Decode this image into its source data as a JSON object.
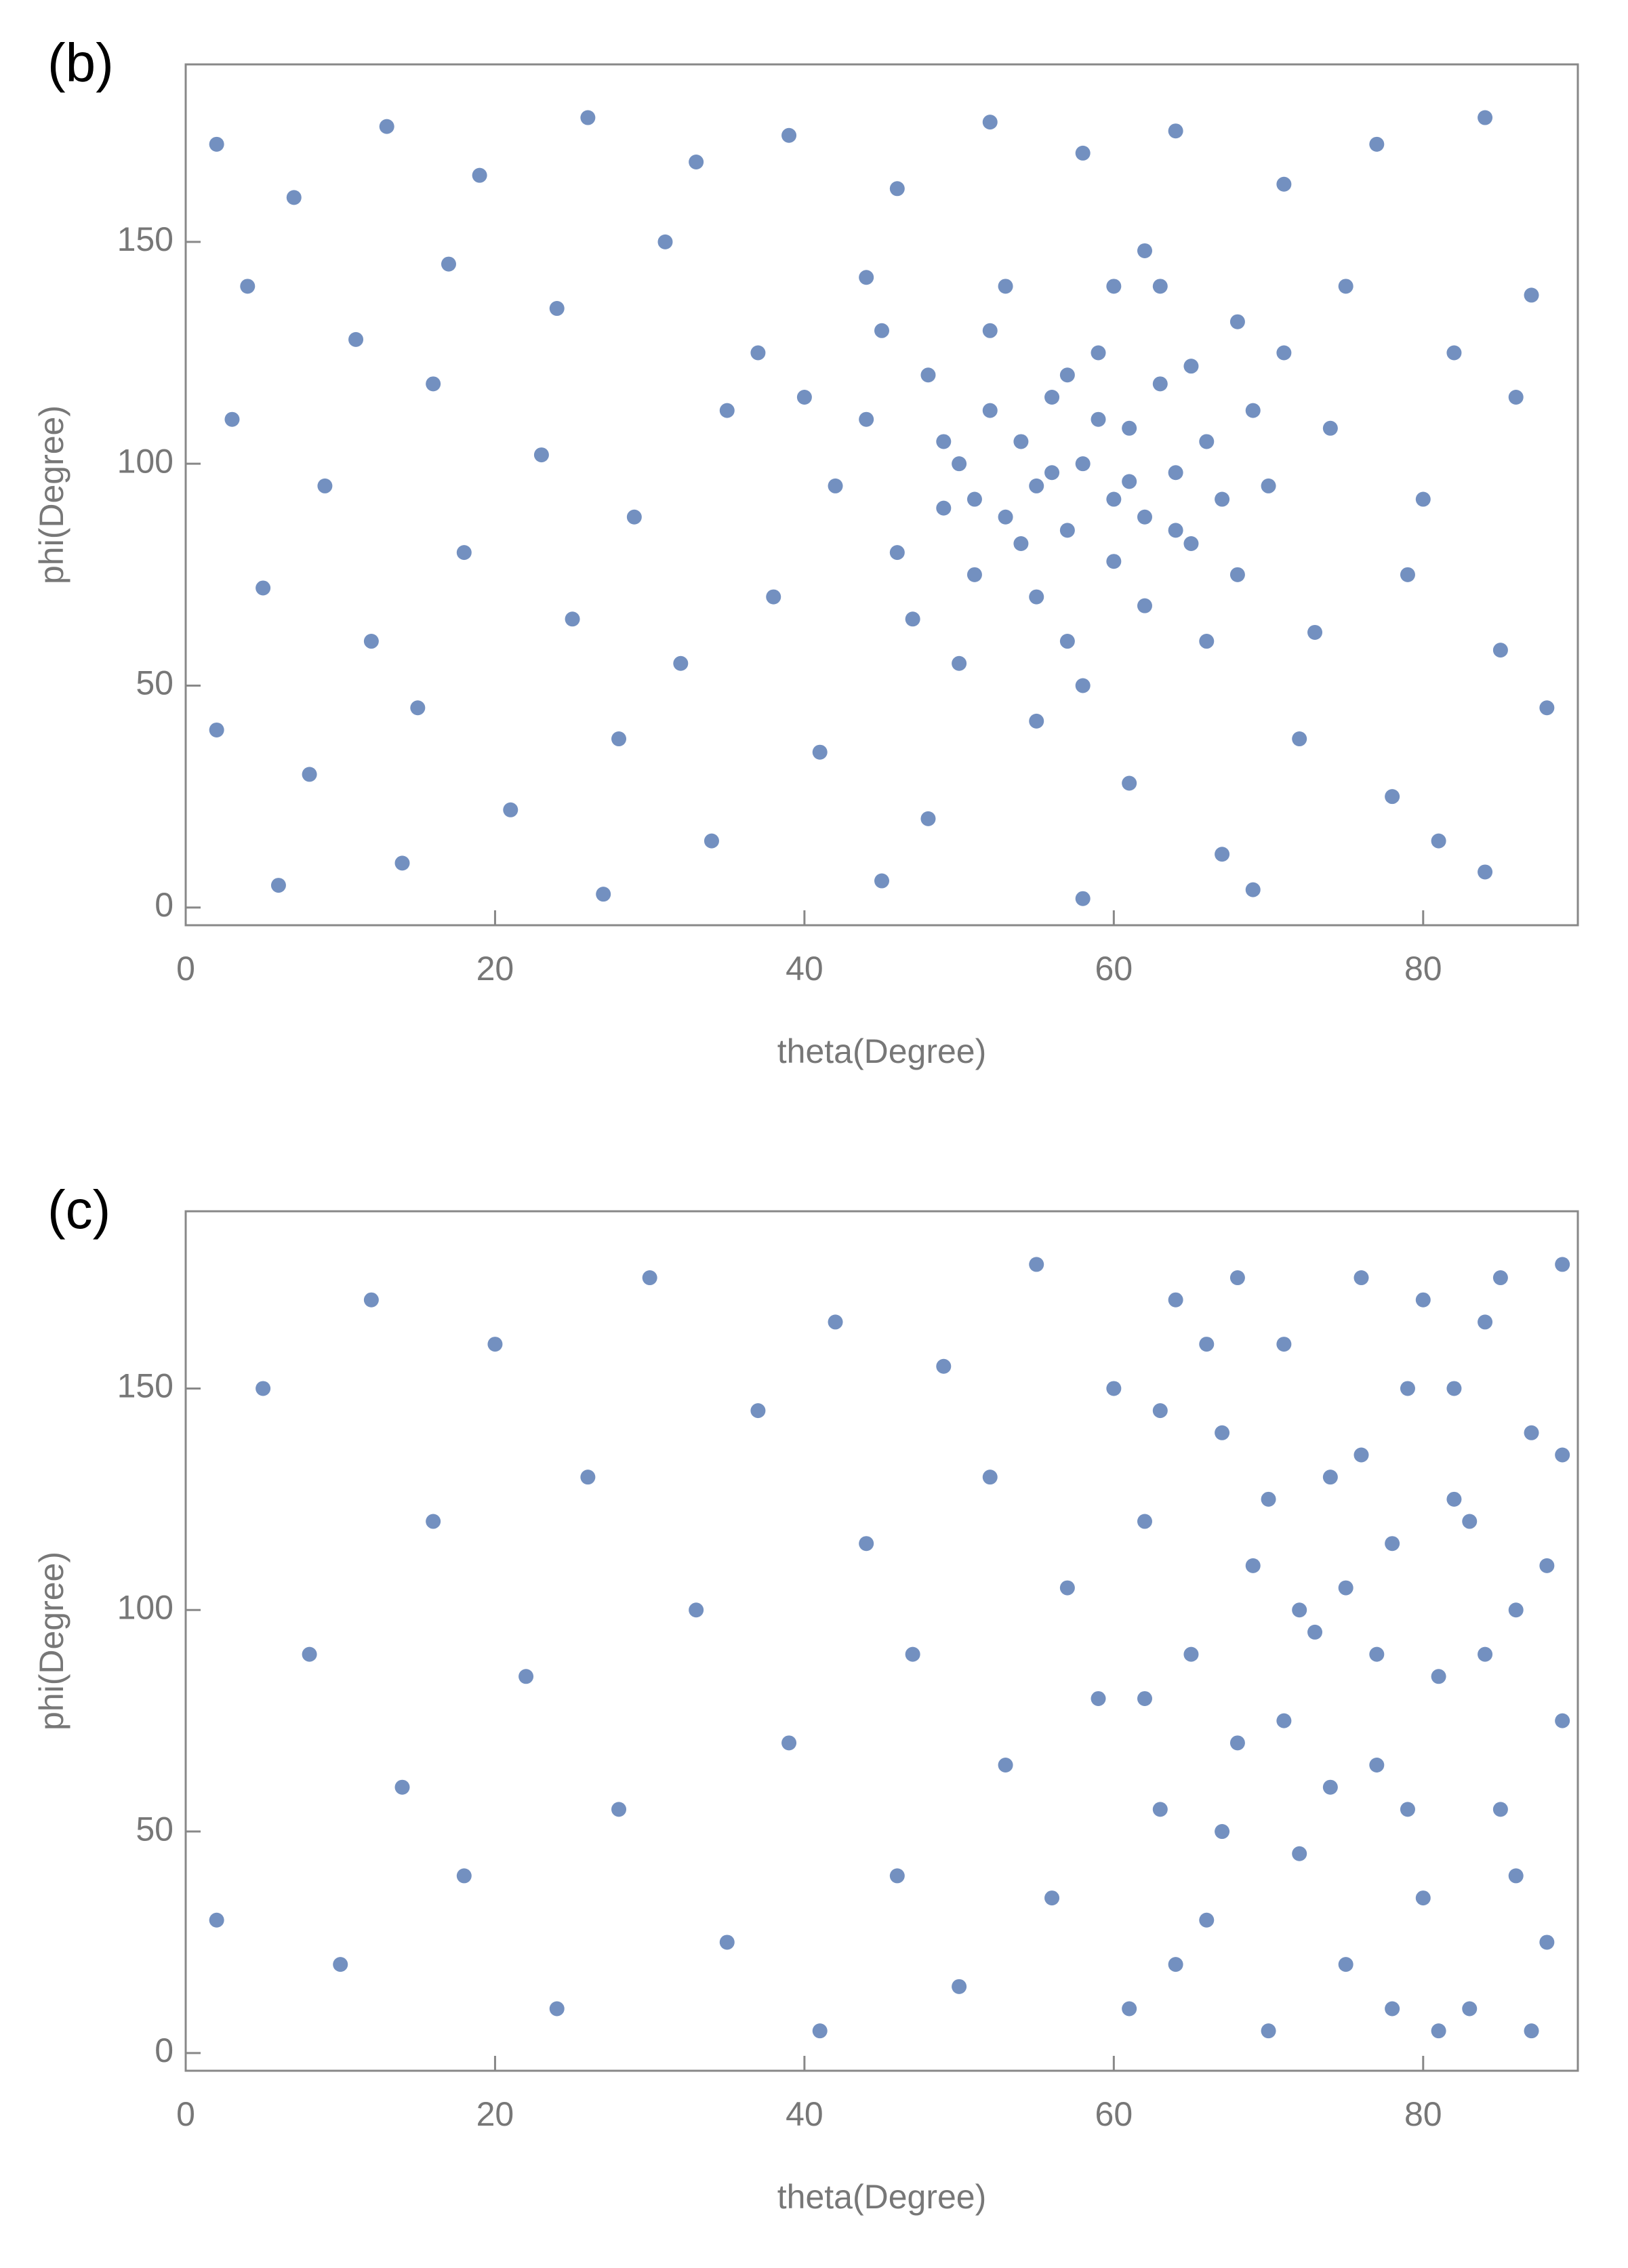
{
  "chart_data": [
    {
      "type": "scatter",
      "label": "(b)",
      "xlabel": "theta(Degree)",
      "ylabel": "phi(Degree)",
      "color": "#5a7db5",
      "xlim": [
        0,
        90
      ],
      "ylim": [
        -4,
        190
      ],
      "xticks": [
        0,
        20,
        40,
        60,
        80
      ],
      "yticks": [
        0,
        50,
        100,
        150
      ],
      "x": [
        2,
        7,
        13,
        19,
        26,
        33,
        39,
        46,
        52,
        58,
        64,
        71,
        77,
        84,
        4,
        11,
        17,
        24,
        31,
        37,
        44,
        62,
        68,
        75,
        82,
        87,
        3,
        9,
        16,
        23,
        29,
        35,
        74,
        80,
        86,
        5,
        12,
        18,
        25,
        32,
        38,
        73,
        79,
        85,
        2,
        8,
        15,
        21,
        28,
        34,
        41,
        48,
        55,
        61,
        67,
        72,
        78,
        84,
        88,
        6,
        14,
        27,
        45,
        58,
        69,
        81,
        42,
        44,
        46,
        48,
        49,
        50,
        51,
        52,
        53,
        54,
        55,
        55,
        56,
        57,
        58,
        59,
        60,
        60,
        61,
        62,
        63,
        64,
        65,
        66,
        67,
        68,
        69,
        70,
        57,
        53,
        47,
        63,
        58,
        50,
        66,
        45,
        71,
        54,
        59,
        62,
        56,
        52,
        61,
        64,
        49,
        57,
        65,
        51,
        60,
        40
      ],
      "y": [
        172,
        160,
        176,
        165,
        178,
        168,
        174,
        162,
        177,
        170,
        175,
        163,
        172,
        178,
        140,
        128,
        145,
        135,
        150,
        125,
        142,
        148,
        132,
        140,
        125,
        138,
        110,
        95,
        118,
        102,
        88,
        112,
        108,
        92,
        115,
        72,
        60,
        80,
        65,
        55,
        70,
        62,
        75,
        58,
        40,
        30,
        45,
        22,
        38,
        15,
        35,
        20,
        42,
        28,
        12,
        38,
        25,
        8,
        45,
        5,
        10,
        3,
        6,
        2,
        4,
        15,
        95,
        110,
        80,
        120,
        90,
        100,
        75,
        130,
        88,
        105,
        95,
        70,
        115,
        85,
        100,
        125,
        92,
        78,
        108,
        88,
        118,
        98,
        82,
        105,
        92,
        75,
        112,
        95,
        60,
        140,
        65,
        140,
        50,
        55,
        60,
        130,
        125,
        82,
        110,
        68,
        98,
        112,
        96,
        85,
        105,
        120,
        122,
        92,
        140,
        115
      ]
    },
    {
      "type": "scatter",
      "label": "(c)",
      "xlabel": "theta(Degree)",
      "ylabel": "phi(Degree)",
      "color": "#5a7db5",
      "xlim": [
        0,
        90
      ],
      "ylim": [
        -4,
        190
      ],
      "xticks": [
        0,
        20,
        40,
        60,
        80
      ],
      "yticks": [
        0,
        50,
        100,
        150
      ],
      "x": [
        2,
        5,
        8,
        10,
        12,
        14,
        16,
        18,
        20,
        22,
        24,
        26,
        28,
        30,
        33,
        35,
        37,
        39,
        41,
        42,
        44,
        46,
        47,
        49,
        50,
        52,
        53,
        55,
        56,
        57,
        59,
        60,
        61,
        62,
        63,
        64,
        65,
        66,
        67,
        68,
        69,
        70,
        71,
        72,
        73,
        74,
        75,
        76,
        77,
        78,
        79,
        80,
        81,
        82,
        83,
        84,
        85,
        86,
        87,
        88,
        89,
        89,
        62,
        66,
        70,
        74,
        78,
        82,
        86,
        88,
        64,
        68,
        72,
        76,
        80,
        84,
        87,
        63,
        67,
        71,
        75,
        79,
        83,
        85,
        89,
        81,
        77
      ],
      "y": [
        30,
        150,
        90,
        20,
        170,
        60,
        120,
        40,
        160,
        85,
        10,
        130,
        55,
        175,
        100,
        25,
        145,
        70,
        5,
        165,
        115,
        40,
        90,
        155,
        15,
        130,
        65,
        178,
        35,
        105,
        80,
        150,
        10,
        120,
        55,
        170,
        90,
        30,
        140,
        70,
        110,
        5,
        160,
        45,
        95,
        130,
        20,
        175,
        65,
        115,
        150,
        35,
        85,
        125,
        10,
        165,
        55,
        100,
        140,
        25,
        75,
        178,
        80,
        160,
        125,
        60,
        10,
        150,
        40,
        110,
        20,
        175,
        100,
        135,
        170,
        90,
        5,
        145,
        50,
        75,
        105,
        55,
        120,
        175,
        135,
        5,
        90
      ]
    }
  ]
}
